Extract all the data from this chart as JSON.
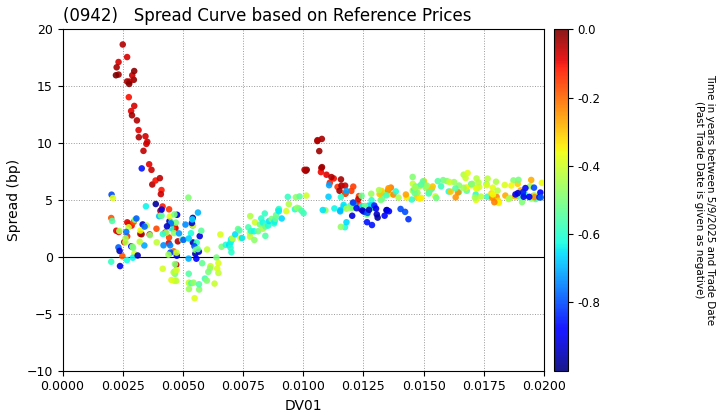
{
  "title": "(0942)   Spread Curve based on Reference Prices",
  "xlabel": "DV01",
  "ylabel": "Spread (bp)",
  "xlim": [
    0.0,
    0.02
  ],
  "ylim": [
    -10.0,
    20.0
  ],
  "yticks": [
    -10.0,
    -5.0,
    0.0,
    5.0,
    10.0,
    15.0,
    20.0
  ],
  "xticks": [
    0.0,
    0.0025,
    0.005,
    0.0075,
    0.01,
    0.0125,
    0.015,
    0.0175,
    0.02
  ],
  "xtick_labels": [
    "0.0000",
    "0.0025",
    "0.0050",
    "0.0075",
    "0.0100",
    "0.0125",
    "0.0150",
    "0.0175",
    "0.0200"
  ],
  "colorbar_label": "Time in years between 5/9/2025 and Trade Date\n(Past Trade Date is given as negative)",
  "cmap": "jet",
  "vmin": -1.0,
  "vmax": 0.0,
  "colorbar_ticks": [
    0.0,
    -0.2,
    -0.4,
    -0.6,
    -0.8
  ],
  "marker_size": 22,
  "background_color": "#ffffff",
  "grid_color": "#999999",
  "title_fontsize": 12,
  "axis_fontsize": 9,
  "seed": 42
}
